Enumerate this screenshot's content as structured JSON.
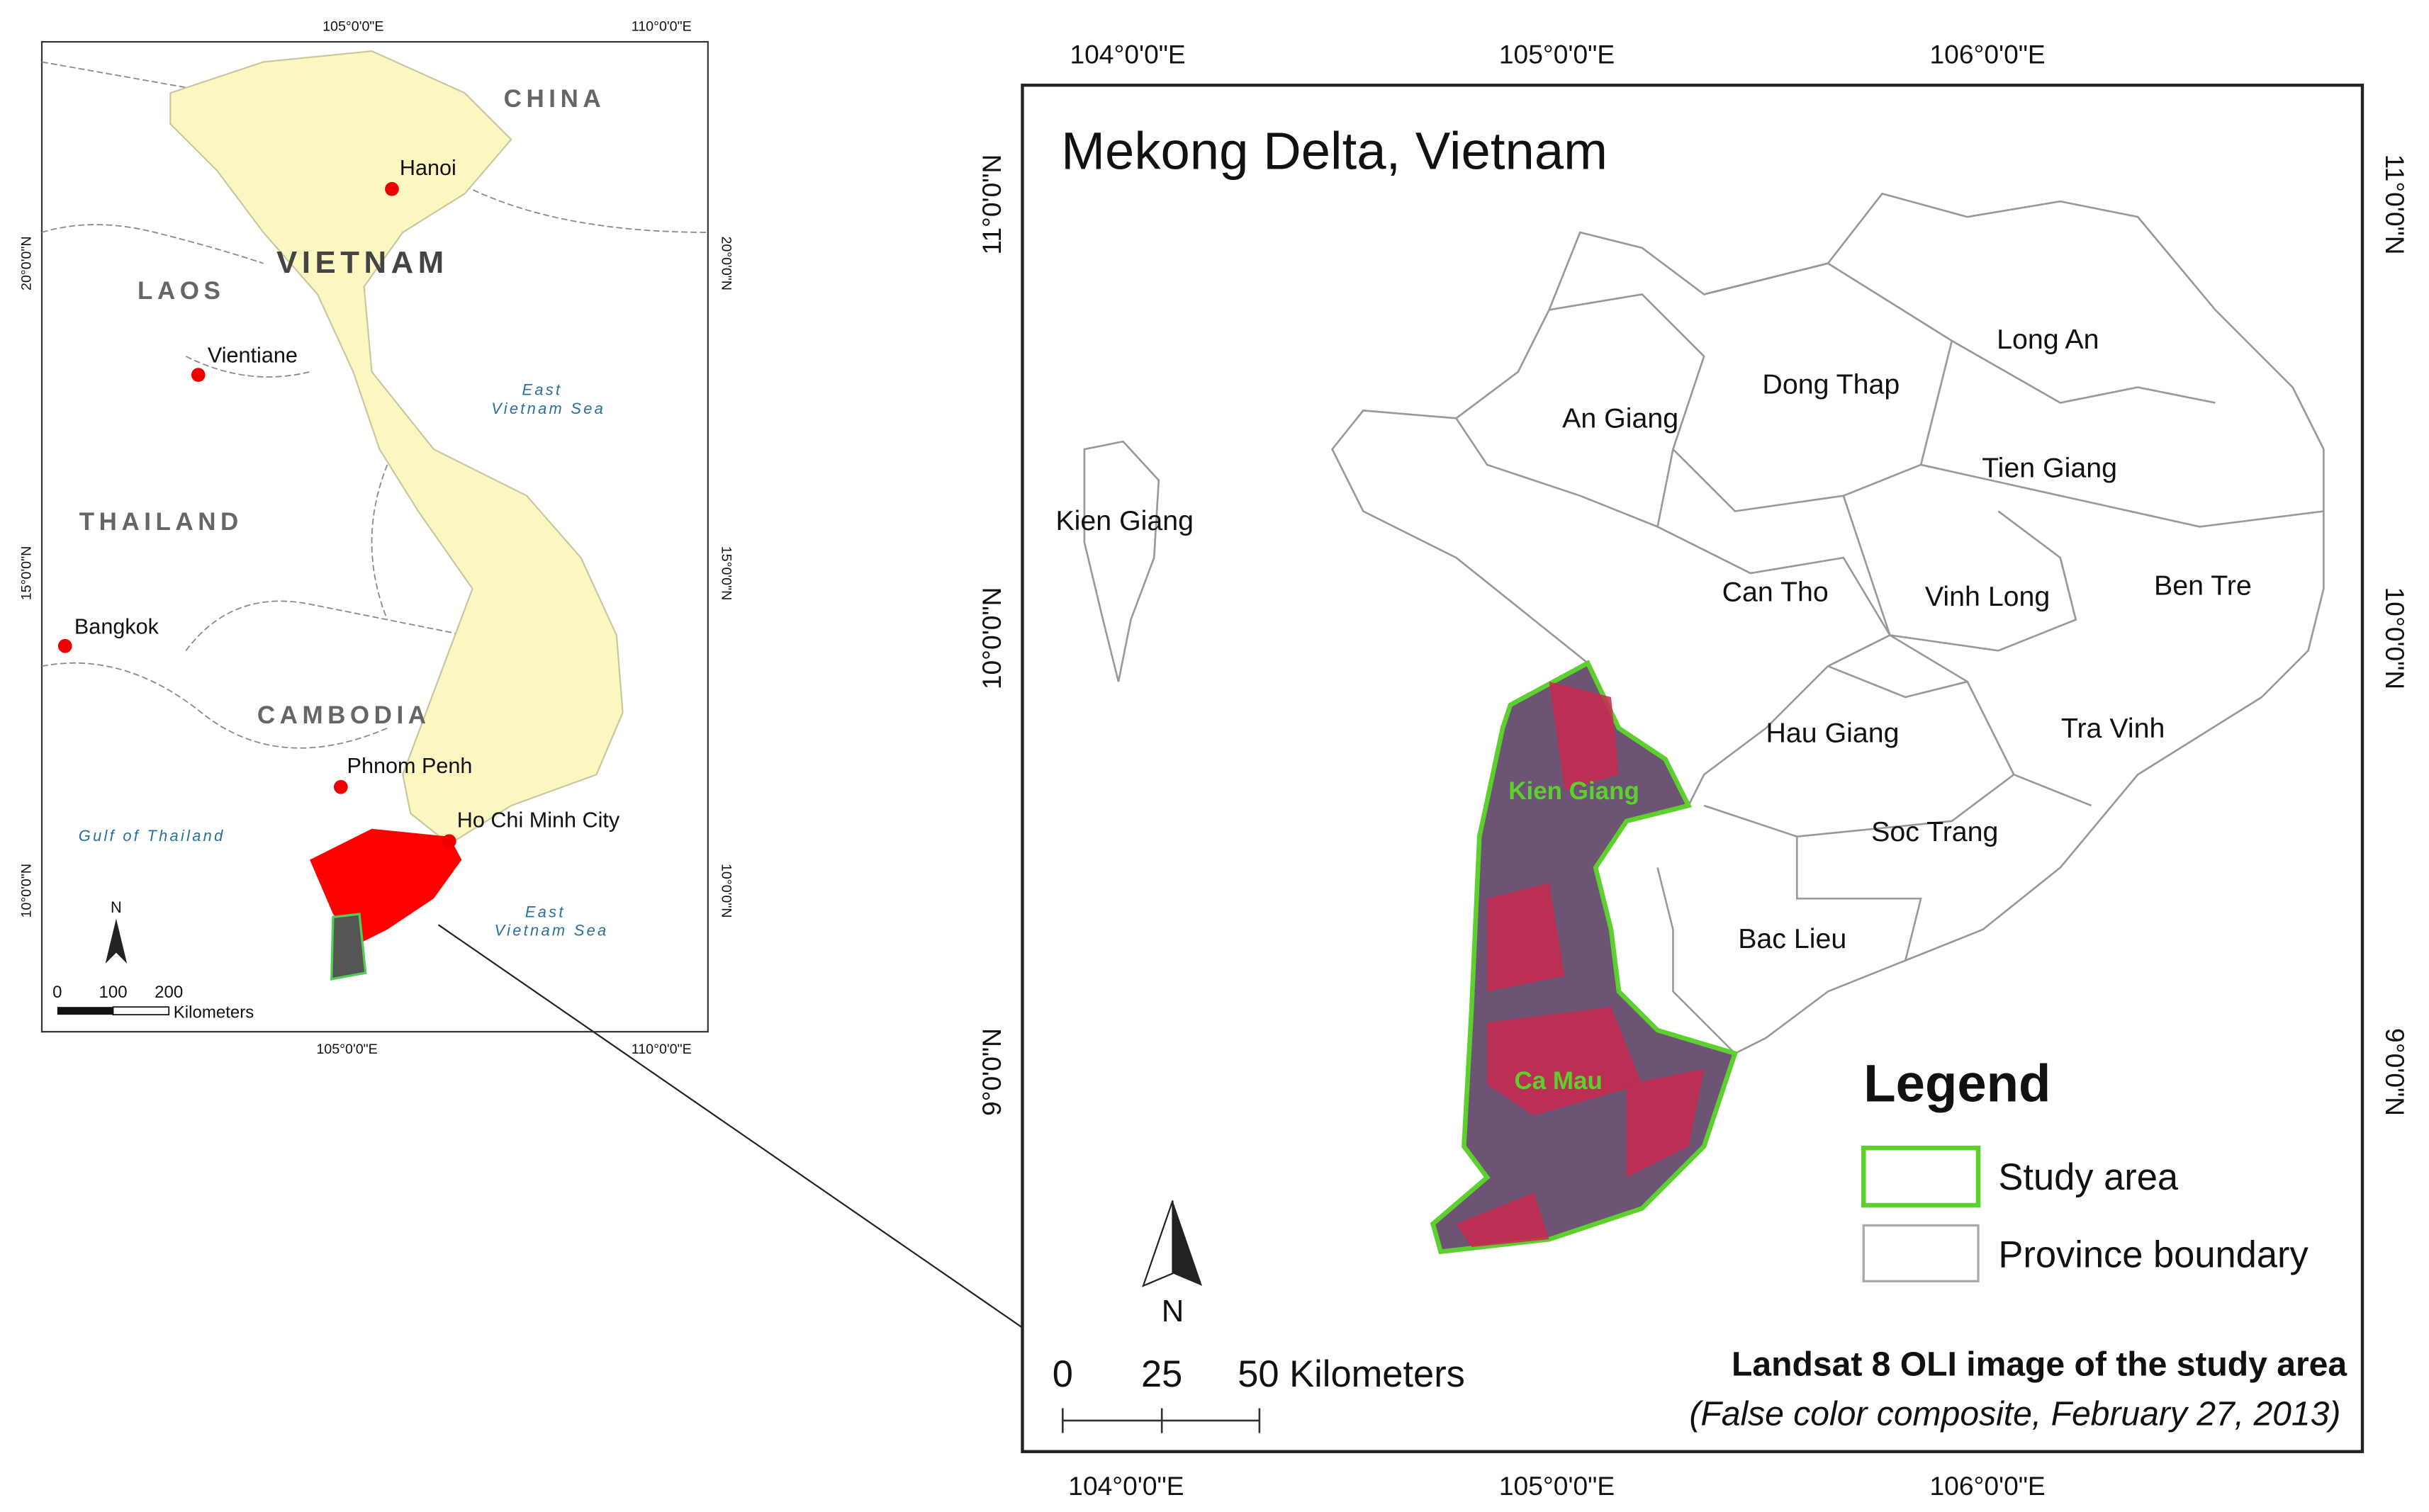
{
  "inset_map": {
    "top_longitudes": [
      "105°0'0\"E",
      "110°0'0\"E"
    ],
    "bottom_longitudes": [
      "105°0'0\"E",
      "110°0'0\"E"
    ],
    "left_latitudes": [
      "20°0'0\"N",
      "15°0'0\"N",
      "10°0'0\"N"
    ],
    "right_latitudes": [
      "20°0'0\"N",
      "15°0'0\"N",
      "10°0'0\"N"
    ],
    "countries": [
      "CHINA",
      "VIETNAM",
      "LAOS",
      "THAILAND",
      "CAMBODIA"
    ],
    "cities": [
      "Hanoi",
      "Vientiane",
      "Bangkok",
      "Phnom Penh",
      "Ho Chi Minh City"
    ],
    "seas": [
      {
        "line1": "East",
        "line2": "Vietnam Sea"
      },
      {
        "line1": "Gulf of Thailand"
      },
      {
        "line1": "East",
        "line2": "Vietnam Sea"
      }
    ],
    "north_arrow": "N",
    "scale_bar": {
      "ticks": [
        "0",
        "100",
        "200"
      ],
      "unit": "Kilometers"
    }
  },
  "main_map": {
    "title": "Mekong Delta, Vietnam",
    "top_longitudes": [
      "104°0'0\"E",
      "105°0'0\"E",
      "106°0'0\"E"
    ],
    "bottom_longitudes": [
      "104°0'0\"E",
      "105°0'0\"E",
      "106°0'0\"E"
    ],
    "left_latitudes": [
      "11°0'0\"N",
      "10°0'0\"N",
      "9°0'0\"N"
    ],
    "right_latitudes": [
      "11°0'0\"N",
      "10°0'0\"N",
      "9°0'0\"N"
    ],
    "provinces": [
      "Kien Giang",
      "An Giang",
      "Dong Thap",
      "Long An",
      "Tien Giang",
      "Can Tho",
      "Vinh Long",
      "Ben Tre",
      "Hau Giang",
      "Tra Vinh",
      "Soc Trang",
      "Bac Lieu"
    ],
    "study_area_labels": [
      "Kien Giang",
      "Ca Mau"
    ],
    "legend": {
      "title": "Legend",
      "items": [
        "Study area",
        "Province boundary"
      ]
    },
    "north_arrow": "N",
    "scale_bar": {
      "ticks": [
        "0",
        "25",
        "50 Kilometers"
      ]
    },
    "caption": {
      "title": "Landsat 8 OLI image of the study area",
      "subtitle": "(False color composite, February 27, 2013)"
    }
  }
}
